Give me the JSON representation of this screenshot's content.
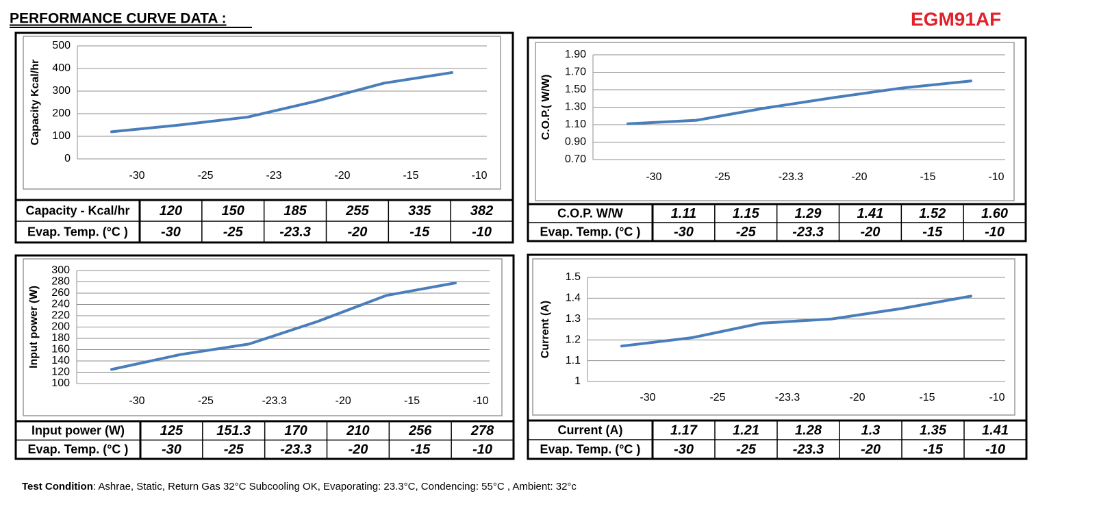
{
  "header": {
    "title": "PERFORMANCE CURVE DATA :",
    "model": "EGM91AF"
  },
  "chart_data": [
    {
      "type": "line",
      "y_label": "Capacity   Kcal/hr",
      "categories": [
        "-30",
        "-25",
        "-23",
        "-20",
        "-15",
        "-10"
      ],
      "values": [
        120,
        150,
        185,
        255,
        335,
        382
      ],
      "color": "#4a7ebb",
      "ylim": [
        0,
        500
      ],
      "yticks": [
        0,
        100,
        200,
        300,
        400,
        500
      ],
      "grid": true
    },
    {
      "type": "line",
      "y_label": "C.O.P.( W/W)",
      "categories": [
        "-30",
        "-25",
        "-23.3",
        "-20",
        "-15",
        "-10"
      ],
      "values": [
        1.11,
        1.15,
        1.29,
        1.41,
        1.52,
        1.6
      ],
      "color": "#4a7ebb",
      "ylim": [
        0.7,
        1.9
      ],
      "yticks": [
        {
          "value": 0.7,
          "label": "0.70"
        },
        {
          "value": 0.9,
          "label": "0.90"
        },
        {
          "value": 1.1,
          "label": "1.10"
        },
        {
          "value": 1.3,
          "label": "1.30"
        },
        {
          "value": 1.5,
          "label": "1.50"
        },
        {
          "value": 1.7,
          "label": "1.70"
        },
        {
          "value": 1.9,
          "label": "1.90"
        }
      ],
      "grid": true
    },
    {
      "type": "line",
      "y_label": "Input power   (W)",
      "categories": [
        "-30",
        "-25",
        "-23.3",
        "-20",
        "-15",
        "-10"
      ],
      "values": [
        125,
        151.3,
        170,
        210,
        256,
        278
      ],
      "color": "#4a7ebb",
      "ylim": [
        100,
        300
      ],
      "yticks": [
        100,
        120,
        140,
        160,
        180,
        200,
        220,
        240,
        260,
        280,
        300
      ],
      "grid": true
    },
    {
      "type": "line",
      "y_label": "Current (A)",
      "categories": [
        "-30",
        "-25",
        "-23.3",
        "-20",
        "-15",
        "-10"
      ],
      "values": [
        1.17,
        1.21,
        1.28,
        1.3,
        1.35,
        1.41
      ],
      "color": "#4a7ebb",
      "ylim": [
        1,
        1.5
      ],
      "yticks": [
        1,
        1.1,
        1.2,
        1.3,
        1.4,
        1.5
      ],
      "grid": true
    }
  ],
  "tables": [
    {
      "rows": [
        [
          "Capacity - Kcal/hr",
          "120",
          "150",
          "185",
          "255",
          "335",
          "382"
        ],
        [
          "Evap. Temp. (°C )",
          "-30",
          "-25",
          "-23.3",
          "-20",
          "-15",
          "-10"
        ]
      ]
    },
    {
      "rows": [
        [
          "C.O.P. W/W",
          "1.11",
          "1.15",
          "1.29",
          "1.41",
          "1.52",
          "1.60"
        ],
        [
          "Evap. Temp. (°C )",
          "-30",
          "-25",
          "-23.3",
          "-20",
          "-15",
          "-10"
        ]
      ]
    },
    {
      "rows": [
        [
          "Input power (W)",
          "125",
          "151.3",
          "170",
          "210",
          "256",
          "278"
        ],
        [
          "Evap. Temp. (°C )",
          "-30",
          "-25",
          "-23.3",
          "-20",
          "-15",
          "-10"
        ]
      ]
    },
    {
      "rows": [
        [
          "Current (A)",
          "1.17",
          "1.21",
          "1.28",
          "1.3",
          "1.35",
          "1.41"
        ],
        [
          "Evap. Temp. (°C )",
          "-30",
          "-25",
          "-23.3",
          "-20",
          "-15",
          "-10"
        ]
      ]
    }
  ],
  "footer": {
    "label": "Test Condition",
    "text": ": Ashrae, Static, Return Gas 32°C Subcooling OK, Evaporating: 23.3°C, Condencing: 55°C , Ambient: 32°c"
  }
}
